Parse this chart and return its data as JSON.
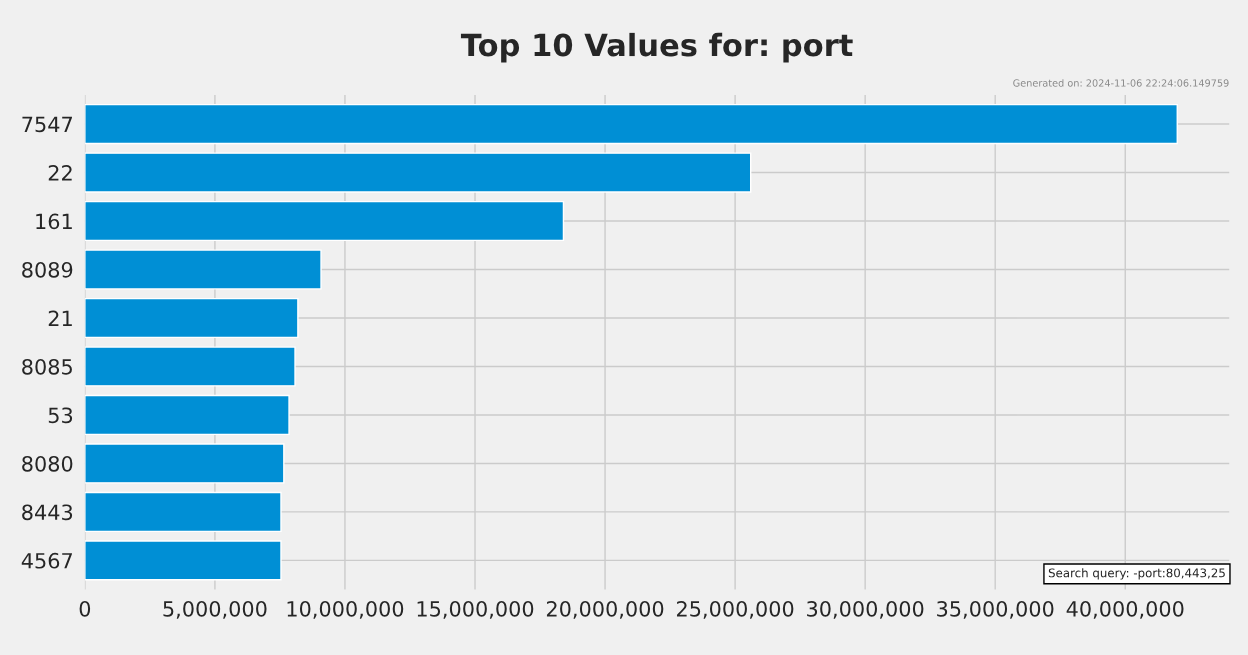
{
  "chart_data": {
    "type": "bar",
    "orientation": "horizontal",
    "title": "Top 10 Values for: port",
    "categories": [
      "7547",
      "22",
      "161",
      "8089",
      "21",
      "8085",
      "53",
      "8080",
      "8443",
      "4567"
    ],
    "values": [
      42000000,
      25600000,
      18400000,
      9080000,
      8190000,
      8080000,
      7850000,
      7650000,
      7540000,
      7540000
    ],
    "color": "#008fd5",
    "xlim": [
      0,
      44000000
    ],
    "xticks": [
      0,
      {
        "value": 5000000,
        "label": "5,000,000"
      },
      {
        "value": 10000000,
        "label": "10,000,000"
      },
      {
        "value": 15000000,
        "label": "15,000,000"
      },
      {
        "value": 20000000,
        "label": "20,000,000"
      },
      {
        "value": 25000000,
        "label": "25,000,000"
      },
      {
        "value": 30000000,
        "label": "30,000,000"
      },
      {
        "value": 35000000,
        "label": "35,000,000"
      },
      {
        "value": 40000000,
        "label": "40,000,000"
      }
    ],
    "grid": true,
    "annotations": [
      "Generated on: 2024-11-06 22:24:06.149759",
      "Search query: -port:80,443,25"
    ]
  }
}
